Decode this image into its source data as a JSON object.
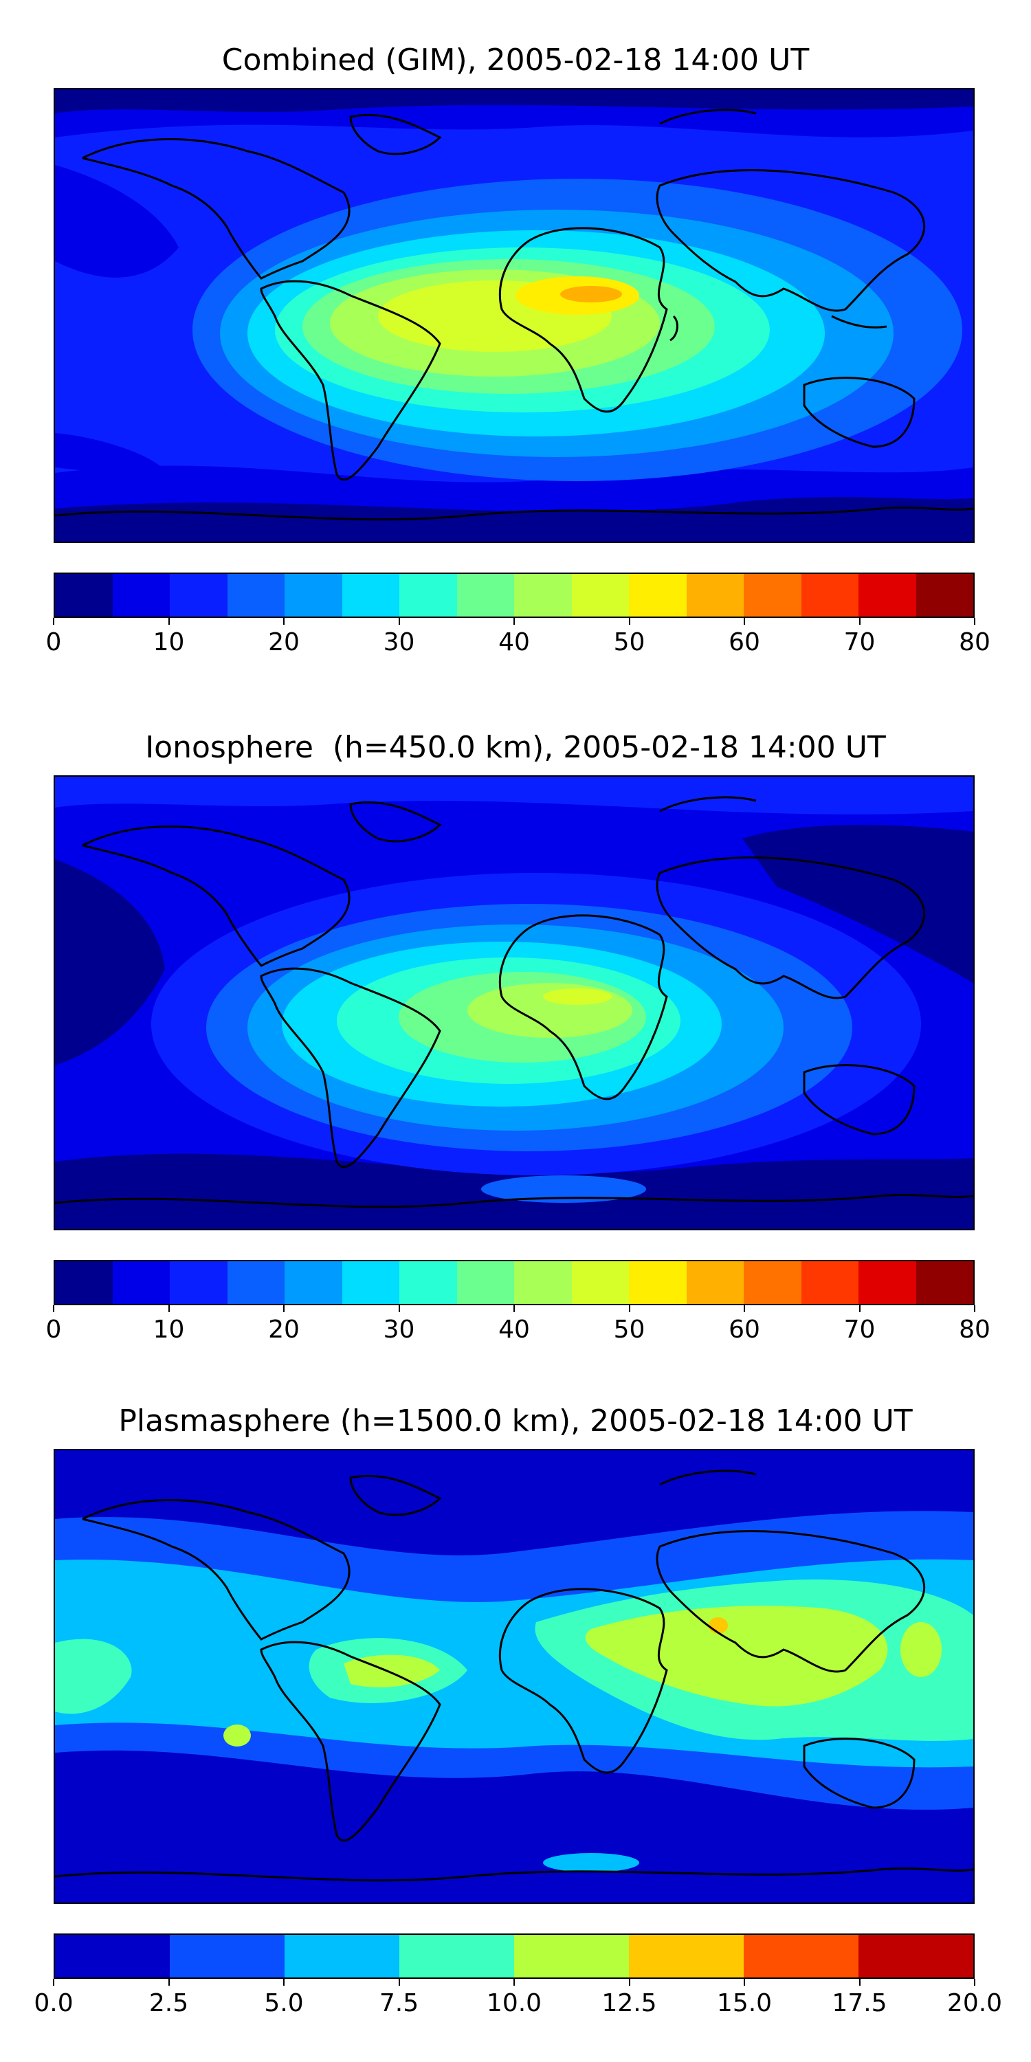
{
  "panels": [
    {
      "title": "Combined (GIM), 2005-02-18 14:00 UT",
      "colorbar": {
        "colors": [
          "#00008f",
          "#0000e8",
          "#0a1fff",
          "#0a5fff",
          "#009bff",
          "#00ddff",
          "#28ffd4",
          "#6bff90",
          "#a8ff56",
          "#d6ff2a",
          "#ffee00",
          "#ffb000",
          "#ff7200",
          "#ff3800",
          "#e00000",
          "#900000"
        ],
        "ticks": [
          "0",
          "10",
          "20",
          "30",
          "40",
          "50",
          "60",
          "70",
          "80"
        ]
      },
      "field": {
        "background": "#0a1fff"
      }
    },
    {
      "title": "Ionosphere  (h=450.0 km), 2005-02-18 14:00 UT",
      "colorbar": {
        "colors": [
          "#00008f",
          "#0000e8",
          "#0a1fff",
          "#0a5fff",
          "#009bff",
          "#00ddff",
          "#28ffd4",
          "#6bff90",
          "#a8ff56",
          "#d6ff2a",
          "#ffee00",
          "#ffb000",
          "#ff7200",
          "#ff3800",
          "#e00000",
          "#900000"
        ],
        "ticks": [
          "0",
          "10",
          "20",
          "30",
          "40",
          "50",
          "60",
          "70",
          "80"
        ]
      },
      "field": {
        "background": "#0000e8"
      }
    },
    {
      "title": "Plasmasphere (h=1500.0 km), 2005-02-18 14:00 UT",
      "colorbar": {
        "colors": [
          "#0000c8",
          "#0a4fff",
          "#00bfff",
          "#3dffbf",
          "#b6ff3d",
          "#ffc800",
          "#ff5000",
          "#c00000"
        ],
        "ticks": [
          "0.0",
          "2.5",
          "5.0",
          "7.5",
          "10.0",
          "12.5",
          "15.0",
          "17.5",
          "20.0"
        ]
      },
      "field": {
        "background": "#0000c8"
      }
    }
  ]
}
